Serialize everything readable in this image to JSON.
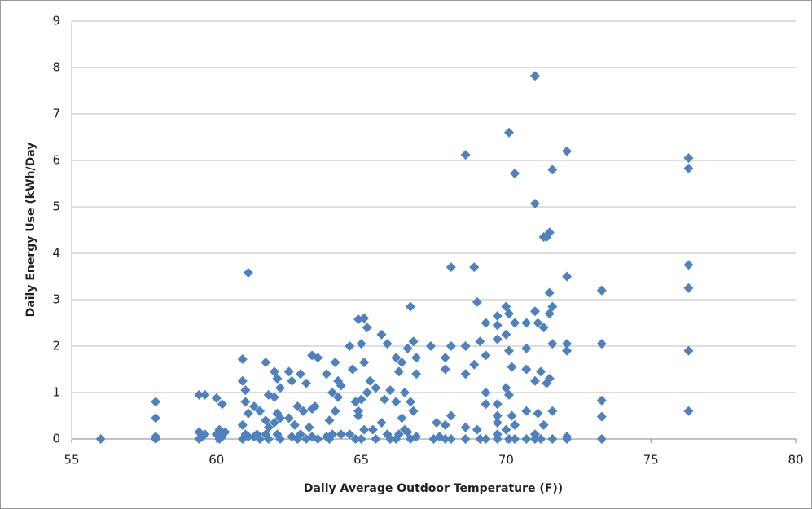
{
  "chart_data": {
    "type": "scatter",
    "x_label": "Daily Average Outdoor Temperature (F))",
    "y_label": "Daily Energy Use (kWh/Day",
    "xlim": [
      55,
      80
    ],
    "xticks": [
      55,
      60,
      65,
      70,
      75,
      80
    ],
    "ylim": [
      0,
      9
    ],
    "yticks": [
      0,
      1,
      2,
      3,
      4,
      5,
      6,
      7,
      8,
      9
    ],
    "grid": true,
    "series": [
      {
        "color": "#4f81bd",
        "x": [
          56.0,
          57.9,
          57.9,
          57.9,
          57.9,
          59.4,
          59.6,
          59.4,
          59.6,
          59.5,
          59.4,
          60.0,
          60.2,
          60.1,
          60.3,
          60.0,
          60.2,
          60.1,
          60.9,
          60.9,
          61.0,
          61.0,
          61.1,
          60.9,
          61.0,
          61.1,
          60.9,
          61.1,
          61.3,
          61.5,
          61.4,
          61.3,
          61.5,
          61.7,
          61.8,
          61.7,
          61.8,
          61.7,
          61.8,
          62.0,
          62.1,
          62.2,
          62.0,
          62.1,
          62.2,
          62.0,
          62.1,
          62.2,
          62.5,
          62.6,
          62.8,
          62.5,
          62.7,
          62.6,
          62.8,
          62.9,
          63.1,
          63.3,
          63.0,
          63.2,
          62.9,
          63.1,
          63.3,
          63.5,
          63.4,
          63.3,
          63.5,
          63.8,
          63.9,
          64.0,
          63.8,
          63.9,
          64.1,
          64.2,
          64.3,
          64.0,
          64.2,
          64.1,
          64.3,
          64.6,
          64.7,
          64.8,
          64.9,
          64.6,
          64.8,
          64.9,
          65.1,
          65.2,
          65.0,
          65.1,
          65.2,
          65.0,
          64.9,
          65.1,
          65.0,
          65.3,
          65.5,
          65.4,
          65.5,
          65.7,
          65.9,
          66.0,
          65.8,
          65.7,
          65.9,
          66.0,
          66.2,
          66.4,
          66.3,
          66.5,
          66.2,
          66.4,
          66.5,
          66.3,
          66.2,
          66.7,
          66.8,
          66.6,
          66.9,
          66.9,
          66.7,
          66.8,
          66.6,
          66.9,
          66.7,
          67.4,
          67.6,
          67.7,
          67.5,
          67.9,
          67.9,
          67.9,
          67.9,
          68.1,
          68.1,
          68.1,
          68.1,
          68.6,
          68.6,
          68.6,
          68.6,
          68.6,
          68.9,
          69.0,
          69.1,
          68.9,
          69.0,
          69.1,
          69.3,
          69.3,
          69.3,
          69.3,
          69.3,
          69.7,
          69.7,
          69.7,
          69.7,
          69.7,
          69.7,
          69.7,
          69.7,
          70.1,
          70.0,
          70.0,
          70.1,
          70.2,
          70.0,
          70.1,
          70.2,
          70.0,
          70.1,
          70.1,
          70.3,
          70.3,
          70.3,
          70.3,
          70.7,
          70.7,
          70.7,
          70.7,
          70.7,
          71.0,
          71.0,
          71.0,
          71.1,
          71.0,
          71.1,
          71.0,
          71.0,
          71.3,
          71.3,
          71.2,
          71.4,
          71.3,
          71.2,
          71.5,
          71.4,
          71.5,
          71.6,
          71.5,
          71.6,
          71.5,
          71.6,
          71.6,
          71.6,
          72.1,
          72.1,
          72.1,
          72.1,
          72.1,
          72.1,
          73.3,
          73.3,
          73.3,
          73.3,
          73.3,
          76.3,
          76.3,
          76.3,
          76.3,
          76.3,
          76.3
        ],
        "values": [
          0,
          0.8,
          0.45,
          0.05,
          0,
          0.95,
          0.95,
          0.15,
          0.1,
          0.05,
          0,
          0.88,
          0.75,
          0.2,
          0.15,
          0.1,
          0.05,
          0,
          1.72,
          1.25,
          1.05,
          0.8,
          0.55,
          0.3,
          0.1,
          0.05,
          0,
          3.58,
          0.7,
          0.6,
          0.1,
          0.05,
          0,
          1.65,
          0.95,
          0.4,
          0.25,
          0.1,
          0,
          1.45,
          1.3,
          1.1,
          0.9,
          0.55,
          0.45,
          0.35,
          0.1,
          0,
          1.45,
          1.25,
          0.7,
          0.45,
          0.3,
          0.05,
          0,
          1.4,
          1.2,
          0.65,
          0.6,
          0.25,
          0.1,
          0,
          1.8,
          1.75,
          0.7,
          0.05,
          0,
          1.4,
          0.4,
          0.1,
          0.05,
          0,
          1.65,
          1.25,
          1.15,
          1.0,
          0.9,
          0.6,
          0.1,
          2.0,
          1.5,
          0.8,
          0.5,
          0.1,
          0,
          2.58,
          2.6,
          2.4,
          2.05,
          1.65,
          1.0,
          0.85,
          0.6,
          0.2,
          0,
          1.25,
          1.1,
          0.2,
          0,
          2.25,
          2.05,
          1.05,
          0.85,
          0.35,
          0.1,
          0,
          1.75,
          1.65,
          1.45,
          1.0,
          0.8,
          0.45,
          0.2,
          0.1,
          0,
          2.85,
          2.1,
          1.95,
          1.75,
          1.4,
          0.8,
          0.6,
          0.15,
          0.05,
          0,
          2.0,
          0.35,
          0.05,
          0,
          1.75,
          1.5,
          0.3,
          0,
          3.7,
          2.0,
          0.5,
          0,
          6.12,
          2.0,
          1.4,
          0.25,
          0,
          3.7,
          2.95,
          2.1,
          1.6,
          0.2,
          0,
          2.5,
          1.8,
          1.0,
          0.75,
          0,
          2.65,
          2.45,
          2.15,
          0.75,
          0.5,
          0.35,
          0.1,
          0,
          2.7,
          2.85,
          2.25,
          1.9,
          1.55,
          1.1,
          0.95,
          0.5,
          0.2,
          0,
          6.6,
          5.72,
          2.5,
          0.3,
          0,
          2.5,
          1.95,
          1.5,
          0.6,
          0,
          7.82,
          5.07,
          2.75,
          2.5,
          1.25,
          0.55,
          0.1,
          0,
          4.35,
          2.4,
          1.45,
          1.2,
          0.3,
          0,
          4.45,
          4.35,
          3.15,
          2.85,
          2.7,
          2.05,
          1.3,
          0.6,
          0,
          5.8,
          6.2,
          3.5,
          2.05,
          1.9,
          0.05,
          0,
          3.2,
          2.05,
          0.83,
          0.48,
          0,
          6.05,
          5.83,
          3.75,
          3.25,
          1.9,
          0.6
        ]
      }
    ]
  }
}
